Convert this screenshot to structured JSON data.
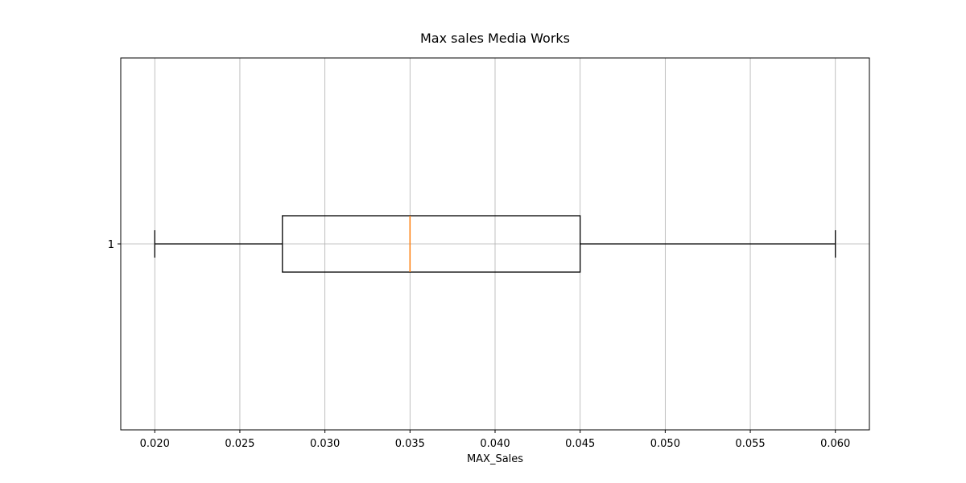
{
  "chart_data": {
    "type": "box",
    "title": "Max sales Media Works",
    "xlabel": "MAX_Sales",
    "ylabel": "",
    "orientation": "horizontal",
    "xlim": [
      0.018,
      0.062
    ],
    "xticks": [
      0.02,
      0.025,
      0.03,
      0.035,
      0.04,
      0.045,
      0.05,
      0.055,
      0.06
    ],
    "xtick_labels": [
      "0.020",
      "0.025",
      "0.030",
      "0.035",
      "0.040",
      "0.045",
      "0.050",
      "0.055",
      "0.060"
    ],
    "ytick_labels": [
      "1"
    ],
    "grid": true,
    "boxes": [
      {
        "label": "1",
        "whisker_low": 0.02,
        "q1": 0.0275,
        "median": 0.035,
        "q3": 0.045,
        "whisker_high": 0.06
      }
    ],
    "colors": {
      "box": "#000000",
      "median": "#ff7f0e",
      "grid": "#b0b0b0"
    }
  }
}
